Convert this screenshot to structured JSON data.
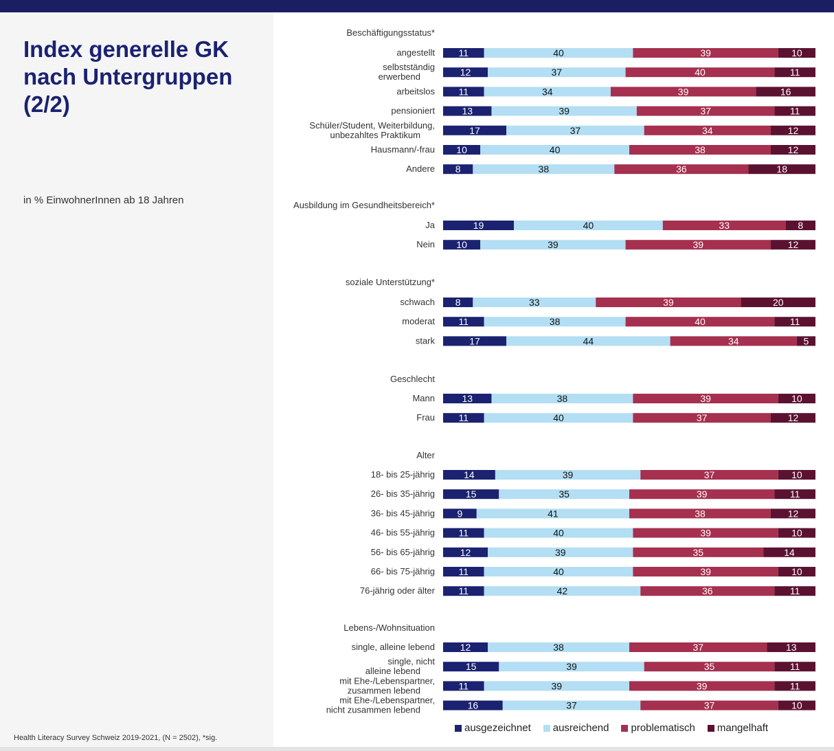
{
  "title": "Index generelle GK\nnach Untergruppen\n(2/2)",
  "subtitle": "in % EinwohnerInnen ab 18 Jahren",
  "footnote": "Health Literacy Survey Schweiz 2019-2021, (N = 2502), *sig.",
  "colors": {
    "ausgezeichnet": "#1b2270",
    "ausreichend": "#b3def3",
    "problematisch": "#a5304f",
    "mangelhaft": "#5b1230"
  },
  "chart_data": {
    "type": "bar",
    "orientation": "horizontal-stacked",
    "series_names": [
      "ausgezeichnet",
      "ausreichend",
      "problematisch",
      "mangelhaft"
    ],
    "groups": [
      {
        "heading": "Beschäftigungsstatus*",
        "rows": [
          {
            "label": "angestellt",
            "values": [
              11,
              40,
              39,
              10
            ]
          },
          {
            "label": "selbstständig erwerbend",
            "values": [
              12,
              37,
              40,
              11
            ]
          },
          {
            "label": "arbeitslos",
            "values": [
              11,
              34,
              39,
              16
            ]
          },
          {
            "label": "pensioniert",
            "values": [
              13,
              39,
              37,
              11
            ]
          },
          {
            "label": "Schüler/Student, Weiterbildung, unbezahltes Praktikum",
            "values": [
              17,
              37,
              34,
              12
            ]
          },
          {
            "label": "Hausmann/-frau",
            "values": [
              10,
              40,
              38,
              12
            ]
          },
          {
            "label": "Andere",
            "values": [
              8,
              38,
              36,
              18
            ]
          }
        ]
      },
      {
        "heading": "Ausbildung im Gesundheitsbereich*",
        "rows": [
          {
            "label": "Ja",
            "values": [
              19,
              40,
              33,
              8
            ]
          },
          {
            "label": "Nein",
            "values": [
              10,
              39,
              39,
              12
            ]
          }
        ]
      },
      {
        "heading": "soziale Unterstützung*",
        "rows": [
          {
            "label": "schwach",
            "values": [
              8,
              33,
              39,
              20
            ]
          },
          {
            "label": "moderat",
            "values": [
              11,
              38,
              40,
              11
            ]
          },
          {
            "label": "stark",
            "values": [
              17,
              44,
              34,
              5
            ]
          }
        ]
      },
      {
        "heading": "Geschlecht",
        "rows": [
          {
            "label": "Mann",
            "values": [
              13,
              38,
              39,
              10
            ]
          },
          {
            "label": "Frau",
            "values": [
              11,
              40,
              37,
              12
            ]
          }
        ]
      },
      {
        "heading": "Alter",
        "rows": [
          {
            "label": "18- bis 25-jährig",
            "values": [
              14,
              39,
              37,
              10
            ]
          },
          {
            "label": "26- bis 35-jährig",
            "values": [
              15,
              35,
              39,
              11
            ]
          },
          {
            "label": "36- bis 45-jährig",
            "values": [
              9,
              41,
              38,
              12
            ]
          },
          {
            "label": "46- bis 55-jährig",
            "values": [
              11,
              40,
              39,
              10
            ]
          },
          {
            "label": "56- bis 65-jährig",
            "values": [
              12,
              39,
              35,
              14
            ]
          },
          {
            "label": "66- bis 75-jährig",
            "values": [
              11,
              40,
              39,
              10
            ]
          },
          {
            "label": "76-jährig oder älter",
            "values": [
              11,
              42,
              36,
              11
            ]
          }
        ]
      },
      {
        "heading": "Lebens-/Wohnsituation",
        "rows": [
          {
            "label": "single, alleine lebend",
            "values": [
              12,
              38,
              37,
              13
            ]
          },
          {
            "label": "single, nicht alleine lebend",
            "values": [
              15,
              39,
              35,
              11
            ]
          },
          {
            "label": "mit Ehe-/Lebenspartner, zusammen lebend",
            "values": [
              11,
              39,
              39,
              11
            ]
          },
          {
            "label": "mit Ehe-/Lebenspartner, nicht zusammen lebend",
            "values": [
              16,
              37,
              37,
              10
            ]
          }
        ]
      }
    ],
    "legend_position": "bottom"
  }
}
